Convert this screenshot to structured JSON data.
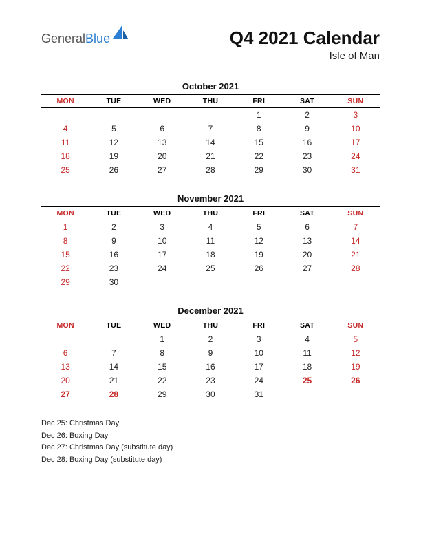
{
  "logo": {
    "general": "General",
    "blue": "Blue",
    "shape_color": "#2a7fd4"
  },
  "title": {
    "main": "Q4 2021 Calendar",
    "sub": "Isle of Man"
  },
  "day_headers": [
    "MON",
    "TUE",
    "WED",
    "THU",
    "FRI",
    "SAT",
    "SUN"
  ],
  "red_header_indices": [
    0,
    6
  ],
  "months": [
    {
      "title": "October 2021",
      "weeks": [
        [
          null,
          null,
          null,
          null,
          {
            "d": "1"
          },
          {
            "d": "2"
          },
          {
            "d": "3",
            "c": "red"
          }
        ],
        [
          {
            "d": "4",
            "c": "red"
          },
          {
            "d": "5"
          },
          {
            "d": "6"
          },
          {
            "d": "7"
          },
          {
            "d": "8"
          },
          {
            "d": "9"
          },
          {
            "d": "10",
            "c": "red"
          }
        ],
        [
          {
            "d": "11",
            "c": "red"
          },
          {
            "d": "12"
          },
          {
            "d": "13"
          },
          {
            "d": "14"
          },
          {
            "d": "15"
          },
          {
            "d": "16"
          },
          {
            "d": "17",
            "c": "red"
          }
        ],
        [
          {
            "d": "18",
            "c": "red"
          },
          {
            "d": "19"
          },
          {
            "d": "20"
          },
          {
            "d": "21"
          },
          {
            "d": "22"
          },
          {
            "d": "23"
          },
          {
            "d": "24",
            "c": "red"
          }
        ],
        [
          {
            "d": "25",
            "c": "red"
          },
          {
            "d": "26"
          },
          {
            "d": "27"
          },
          {
            "d": "28"
          },
          {
            "d": "29"
          },
          {
            "d": "30"
          },
          {
            "d": "31",
            "c": "red"
          }
        ]
      ]
    },
    {
      "title": "November 2021",
      "weeks": [
        [
          {
            "d": "1",
            "c": "red"
          },
          {
            "d": "2"
          },
          {
            "d": "3"
          },
          {
            "d": "4"
          },
          {
            "d": "5"
          },
          {
            "d": "6"
          },
          {
            "d": "7",
            "c": "red"
          }
        ],
        [
          {
            "d": "8",
            "c": "red"
          },
          {
            "d": "9"
          },
          {
            "d": "10"
          },
          {
            "d": "11"
          },
          {
            "d": "12"
          },
          {
            "d": "13"
          },
          {
            "d": "14",
            "c": "red"
          }
        ],
        [
          {
            "d": "15",
            "c": "red"
          },
          {
            "d": "16"
          },
          {
            "d": "17"
          },
          {
            "d": "18"
          },
          {
            "d": "19"
          },
          {
            "d": "20"
          },
          {
            "d": "21",
            "c": "red"
          }
        ],
        [
          {
            "d": "22",
            "c": "red"
          },
          {
            "d": "23"
          },
          {
            "d": "24"
          },
          {
            "d": "25"
          },
          {
            "d": "26"
          },
          {
            "d": "27"
          },
          {
            "d": "28",
            "c": "red"
          }
        ],
        [
          {
            "d": "29",
            "c": "red"
          },
          {
            "d": "30"
          },
          null,
          null,
          null,
          null,
          null
        ]
      ]
    },
    {
      "title": "December 2021",
      "weeks": [
        [
          null,
          null,
          {
            "d": "1"
          },
          {
            "d": "2"
          },
          {
            "d": "3"
          },
          {
            "d": "4"
          },
          {
            "d": "5",
            "c": "red"
          }
        ],
        [
          {
            "d": "6",
            "c": "red"
          },
          {
            "d": "7"
          },
          {
            "d": "8"
          },
          {
            "d": "9"
          },
          {
            "d": "10"
          },
          {
            "d": "11"
          },
          {
            "d": "12",
            "c": "red"
          }
        ],
        [
          {
            "d": "13",
            "c": "red"
          },
          {
            "d": "14"
          },
          {
            "d": "15"
          },
          {
            "d": "16"
          },
          {
            "d": "17"
          },
          {
            "d": "18"
          },
          {
            "d": "19",
            "c": "red"
          }
        ],
        [
          {
            "d": "20",
            "c": "red"
          },
          {
            "d": "21"
          },
          {
            "d": "22"
          },
          {
            "d": "23"
          },
          {
            "d": "24"
          },
          {
            "d": "25",
            "c": "bold-hol"
          },
          {
            "d": "26",
            "c": "bold-hol"
          }
        ],
        [
          {
            "d": "27",
            "c": "bold-hol"
          },
          {
            "d": "28",
            "c": "bold-hol"
          },
          {
            "d": "29"
          },
          {
            "d": "30"
          },
          {
            "d": "31"
          },
          null,
          null
        ]
      ]
    }
  ],
  "holidays": [
    "Dec 25: Christmas Day",
    "Dec 26: Boxing Day",
    "Dec 27: Christmas Day (substitute day)",
    "Dec 28: Boxing Day (substitute day)"
  ]
}
